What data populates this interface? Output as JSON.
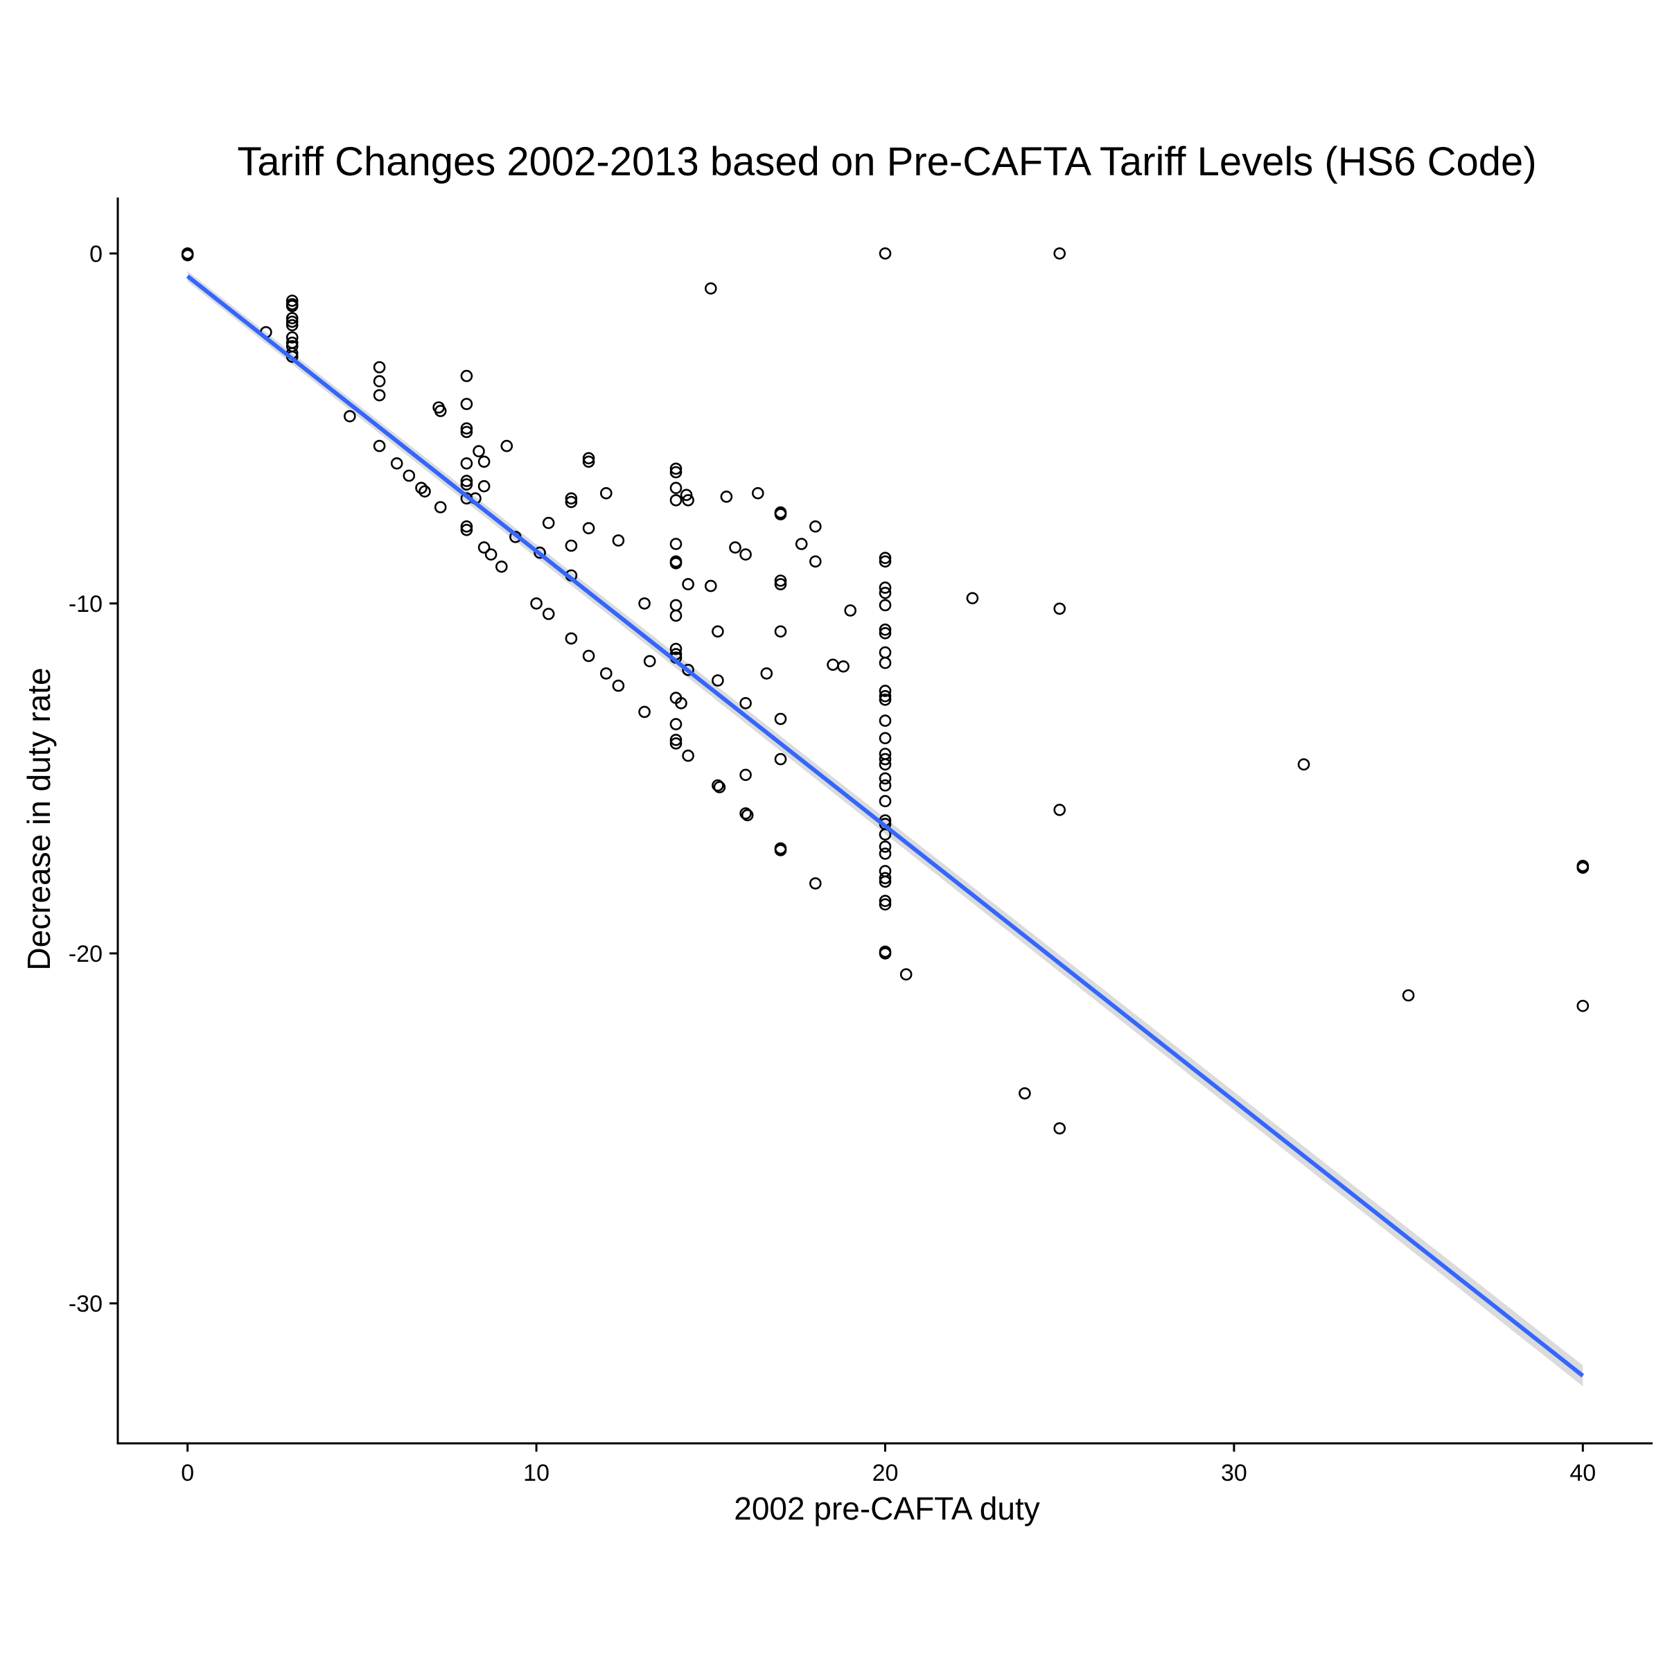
{
  "chart_data": {
    "type": "scatter",
    "title": "Tariff Changes 2002-2013 based on Pre-CAFTA Tariff Levels (HS6 Code)",
    "xlabel": "2002 pre-CAFTA duty",
    "ylabel": "Decrease in duty rate",
    "xlim": [
      -2,
      42
    ],
    "ylim": [
      -34,
      1.6
    ],
    "x_ticks": [
      0,
      10,
      20,
      30,
      40
    ],
    "y_ticks": [
      0,
      -10,
      -20,
      -30
    ],
    "x_tick_labels": [
      "0",
      "10",
      "20",
      "30",
      "40"
    ],
    "y_tick_labels": [
      "0",
      "-10",
      "-20",
      "-30"
    ],
    "grid": false,
    "legend": "none",
    "colors": {
      "points": "#000000",
      "fit_line": "#3366FF",
      "confidence_band": "#BEBEBE"
    },
    "points": [
      [
        0,
        0
      ],
      [
        0,
        -0.05
      ],
      [
        2.25,
        -2.25
      ],
      [
        3,
        -1.35
      ],
      [
        3,
        -1.45
      ],
      [
        3,
        -1.5
      ],
      [
        3,
        -1.85
      ],
      [
        3,
        -1.95
      ],
      [
        3,
        -2.05
      ],
      [
        3,
        -2.4
      ],
      [
        3,
        -2.55
      ],
      [
        3,
        -2.65
      ],
      [
        3,
        -2.85
      ],
      [
        3,
        -2.95
      ],
      [
        4.65,
        -4.65
      ],
      [
        5.5,
        -3.25
      ],
      [
        5.5,
        -3.65
      ],
      [
        5.5,
        -4.05
      ],
      [
        5.5,
        -5.5
      ],
      [
        6,
        -6
      ],
      [
        6.35,
        -6.35
      ],
      [
        6.7,
        -6.7
      ],
      [
        6.8,
        -6.8
      ],
      [
        7.2,
        -4.4
      ],
      [
        7.25,
        -4.5
      ],
      [
        7.25,
        -7.25
      ],
      [
        8,
        -3.5
      ],
      [
        8,
        -4.3
      ],
      [
        8,
        -5
      ],
      [
        8,
        -5.1
      ],
      [
        8,
        -6
      ],
      [
        8,
        -6.5
      ],
      [
        8,
        -6.6
      ],
      [
        8,
        -7
      ],
      [
        8,
        -7.8
      ],
      [
        8,
        -7.9
      ],
      [
        8.25,
        -7
      ],
      [
        8.35,
        -5.65
      ],
      [
        8.5,
        -5.95
      ],
      [
        8.5,
        -6.65
      ],
      [
        8.5,
        -8.4
      ],
      [
        8.7,
        -8.6
      ],
      [
        9,
        -8.95
      ],
      [
        9.15,
        -5.5
      ],
      [
        9.4,
        -8.1
      ],
      [
        10,
        -10
      ],
      [
        10.1,
        -8.55
      ],
      [
        10.35,
        -7.7
      ],
      [
        10.35,
        -10.3
      ],
      [
        11,
        -7
      ],
      [
        11,
        -7.1
      ],
      [
        11,
        -8.35
      ],
      [
        11,
        -9.2
      ],
      [
        11,
        -11
      ],
      [
        11.5,
        -5.85
      ],
      [
        11.5,
        -5.95
      ],
      [
        11.5,
        -7.85
      ],
      [
        11.5,
        -11.5
      ],
      [
        12,
        -6.85
      ],
      [
        12,
        -12
      ],
      [
        12.35,
        -8.2
      ],
      [
        12.35,
        -12.35
      ],
      [
        13.1,
        -10
      ],
      [
        13.1,
        -13.1
      ],
      [
        13.25,
        -11.65
      ],
      [
        14,
        -6.15
      ],
      [
        14,
        -6.25
      ],
      [
        14,
        -6.7
      ],
      [
        14,
        -7.05
      ],
      [
        14,
        -8.3
      ],
      [
        14,
        -8.8
      ],
      [
        14,
        -8.85
      ],
      [
        14,
        -10.05
      ],
      [
        14,
        -10.35
      ],
      [
        14,
        -11.3
      ],
      [
        14,
        -11.45
      ],
      [
        14,
        -11.55
      ],
      [
        14,
        -12.7
      ],
      [
        14,
        -13.45
      ],
      [
        14,
        -13.9
      ],
      [
        14,
        -14
      ],
      [
        14.15,
        -12.85
      ],
      [
        14.3,
        -6.9
      ],
      [
        14.35,
        -7.05
      ],
      [
        14.35,
        -9.45
      ],
      [
        14.35,
        -11.9
      ],
      [
        14.35,
        -14.35
      ],
      [
        15,
        -1
      ],
      [
        15,
        -9.5
      ],
      [
        15.2,
        -10.8
      ],
      [
        15.2,
        -12.2
      ],
      [
        15.2,
        -15.2
      ],
      [
        15.25,
        -15.25
      ],
      [
        15.45,
        -6.95
      ],
      [
        15.7,
        -8.4
      ],
      [
        16,
        -8.6
      ],
      [
        16,
        -12.85
      ],
      [
        16,
        -14.9
      ],
      [
        16,
        -16
      ],
      [
        16.05,
        -16.05
      ],
      [
        16.35,
        -6.85
      ],
      [
        16.6,
        -12
      ],
      [
        17,
        -7.4
      ],
      [
        17,
        -7.45
      ],
      [
        17,
        -9.35
      ],
      [
        17,
        -9.45
      ],
      [
        17,
        -10.8
      ],
      [
        17,
        -13.3
      ],
      [
        17,
        -14.45
      ],
      [
        17,
        -17
      ],
      [
        17,
        -17.05
      ],
      [
        17.6,
        -8.3
      ],
      [
        18,
        -7.8
      ],
      [
        18,
        -8.8
      ],
      [
        18,
        -18
      ],
      [
        18.5,
        -11.75
      ],
      [
        18.8,
        -11.8
      ],
      [
        19,
        -10.2
      ],
      [
        20,
        0
      ],
      [
        20,
        -8.7
      ],
      [
        20,
        -8.8
      ],
      [
        20,
        -9.55
      ],
      [
        20,
        -9.7
      ],
      [
        20,
        -10.05
      ],
      [
        20,
        -10.75
      ],
      [
        20,
        -10.85
      ],
      [
        20,
        -11.4
      ],
      [
        20,
        -11.7
      ],
      [
        20,
        -12.5
      ],
      [
        20,
        -12.65
      ],
      [
        20,
        -12.75
      ],
      [
        20,
        -13.35
      ],
      [
        20,
        -13.85
      ],
      [
        20,
        -14.3
      ],
      [
        20,
        -14.45
      ],
      [
        20,
        -14.6
      ],
      [
        20,
        -15
      ],
      [
        20,
        -15.2
      ],
      [
        20,
        -15.65
      ],
      [
        20,
        -16.2
      ],
      [
        20,
        -16.3
      ],
      [
        20,
        -16.6
      ],
      [
        20,
        -16.95
      ],
      [
        20,
        -17.15
      ],
      [
        20,
        -17.65
      ],
      [
        20,
        -17.85
      ],
      [
        20,
        -17.95
      ],
      [
        20,
        -18.5
      ],
      [
        20,
        -18.6
      ],
      [
        20,
        -19.95
      ],
      [
        20,
        -20
      ],
      [
        20.6,
        -20.6
      ],
      [
        22.5,
        -9.85
      ],
      [
        24,
        -24
      ],
      [
        25,
        0
      ],
      [
        25,
        -10.15
      ],
      [
        25,
        -15.9
      ],
      [
        25,
        -25
      ],
      [
        32,
        -14.6
      ],
      [
        35,
        -21.2
      ],
      [
        40,
        -17.5
      ],
      [
        40,
        -17.55
      ],
      [
        40,
        -21.5
      ]
    ],
    "fit": {
      "method": "lm",
      "confidence_band": true,
      "x_range": [
        0,
        40
      ],
      "intercept": -0.65,
      "slope": -0.7855,
      "band_halfwidth_at_min": 0.15,
      "band_halfwidth_at_max": 0.3
    }
  }
}
